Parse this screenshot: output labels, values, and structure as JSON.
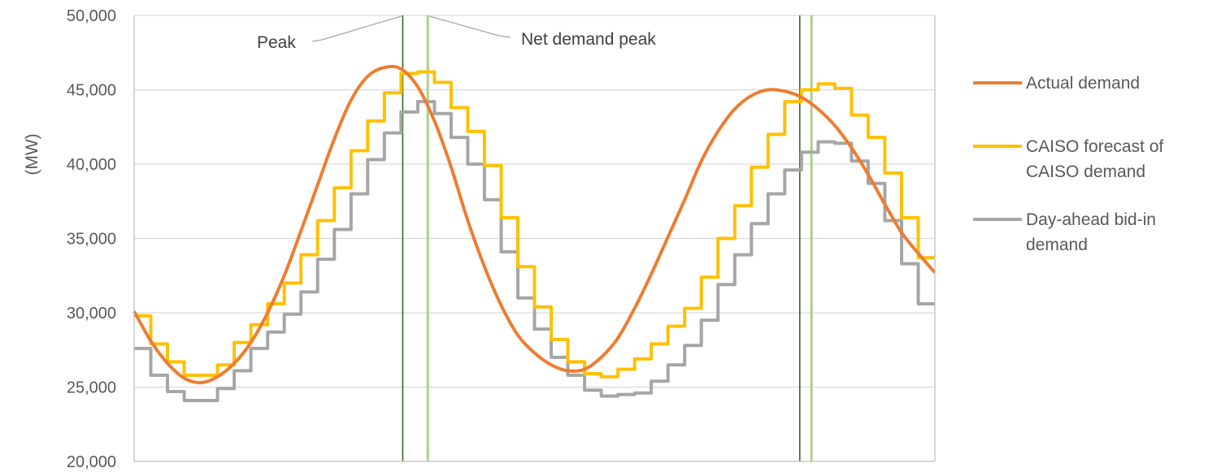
{
  "chart_data": {
    "type": "line",
    "title": "",
    "xlabel": "",
    "ylabel": "(MW)",
    "ylim": [
      20000,
      50000
    ],
    "yticks": [
      20000,
      25000,
      30000,
      35000,
      40000,
      45000,
      50000
    ],
    "ytick_labels": [
      "20,000",
      "25,000",
      "30,000",
      "35,000",
      "40,000",
      "45,000",
      "50,000"
    ],
    "xlim": [
      0,
      48
    ],
    "grid": true,
    "legend_position": "right",
    "annotations": [
      {
        "id": "peak",
        "text": "Peak"
      },
      {
        "id": "net",
        "text": "Net demand peak"
      }
    ],
    "vlines": [
      {
        "x": 16.1,
        "color": "#2e6b1f",
        "kind": "peak"
      },
      {
        "x": 17.6,
        "color": "#a9d18e",
        "kind": "net"
      },
      {
        "x": 39.9,
        "color": "#2e6b1f",
        "kind": "peak"
      },
      {
        "x": 40.6,
        "color": "#a9d18e",
        "kind": "net"
      }
    ],
    "series": [
      {
        "name": "Actual demand",
        "color": "#ed7d31",
        "style": "line",
        "x": [
          0,
          1,
          2,
          3,
          4,
          5,
          6,
          7,
          8,
          9,
          10,
          11,
          12,
          13,
          14,
          15,
          16,
          17,
          18,
          19,
          20,
          21,
          22,
          23,
          24,
          25,
          26,
          27,
          28,
          29,
          30,
          31,
          32,
          33,
          34,
          35,
          36,
          37,
          38,
          39,
          40,
          41,
          42,
          43,
          44,
          45,
          46,
          47,
          48
        ],
        "values": [
          30100,
          28100,
          26600,
          25600,
          25300,
          25700,
          26600,
          28000,
          30000,
          32500,
          35500,
          38600,
          41700,
          44300,
          45900,
          46500,
          46400,
          45200,
          42900,
          39800,
          36200,
          33100,
          30500,
          28500,
          27300,
          26500,
          26100,
          26200,
          27000,
          28300,
          30300,
          32600,
          35100,
          37600,
          40200,
          42200,
          43700,
          44600,
          45000,
          44900,
          44500,
          43700,
          42600,
          41100,
          39300,
          37300,
          35400,
          34000,
          32700
        ]
      },
      {
        "name": "CAISO forecast of CAISO demand",
        "color": "#ffc000",
        "style": "step",
        "x": [
          0,
          1,
          2,
          3,
          4,
          5,
          6,
          7,
          8,
          9,
          10,
          11,
          12,
          13,
          14,
          15,
          16,
          17,
          18,
          19,
          20,
          21,
          22,
          23,
          24,
          25,
          26,
          27,
          28,
          29,
          30,
          31,
          32,
          33,
          34,
          35,
          36,
          37,
          38,
          39,
          40,
          41,
          42,
          43,
          44,
          45,
          46,
          47
        ],
        "values": [
          29800,
          27900,
          26700,
          25800,
          25800,
          26500,
          28000,
          29200,
          30600,
          32000,
          33900,
          36200,
          38400,
          40900,
          42900,
          44800,
          46100,
          46200,
          45500,
          43800,
          42200,
          39900,
          36400,
          33100,
          30400,
          28200,
          26700,
          25900,
          25700,
          26200,
          26900,
          27900,
          29100,
          30300,
          32400,
          35000,
          37200,
          39800,
          42000,
          44200,
          45000,
          45400,
          45100,
          43300,
          41800,
          39400,
          36400,
          33700
        ]
      },
      {
        "name": "Day-ahead bid-in demand",
        "color": "#a6a6a6",
        "style": "step",
        "x": [
          0,
          1,
          2,
          3,
          4,
          5,
          6,
          7,
          8,
          9,
          10,
          11,
          12,
          13,
          14,
          15,
          16,
          17,
          18,
          19,
          20,
          21,
          22,
          23,
          24,
          25,
          26,
          27,
          28,
          29,
          30,
          31,
          32,
          33,
          34,
          35,
          36,
          37,
          38,
          39,
          40,
          41,
          42,
          43,
          44,
          45,
          46,
          47
        ],
        "values": [
          27600,
          25800,
          24700,
          24100,
          24100,
          24900,
          26100,
          27600,
          28700,
          29900,
          31400,
          33600,
          35600,
          38000,
          40300,
          42100,
          43500,
          44200,
          43400,
          41800,
          40000,
          37600,
          34100,
          31000,
          28900,
          27000,
          25800,
          24800,
          24400,
          24500,
          24600,
          25400,
          26500,
          27800,
          29500,
          31900,
          33900,
          36000,
          38000,
          39600,
          40800,
          41500,
          41400,
          40200,
          38700,
          36200,
          33300,
          30600
        ]
      }
    ]
  },
  "legend": {
    "items": [
      {
        "lines": [
          "Actual demand"
        ],
        "color": "#ed7d31"
      },
      {
        "lines": [
          "CAISO forecast of",
          "CAISO demand"
        ],
        "color": "#ffc000"
      },
      {
        "lines": [
          "Day-ahead bid-in",
          "demand"
        ],
        "color": "#a6a6a6"
      }
    ]
  }
}
